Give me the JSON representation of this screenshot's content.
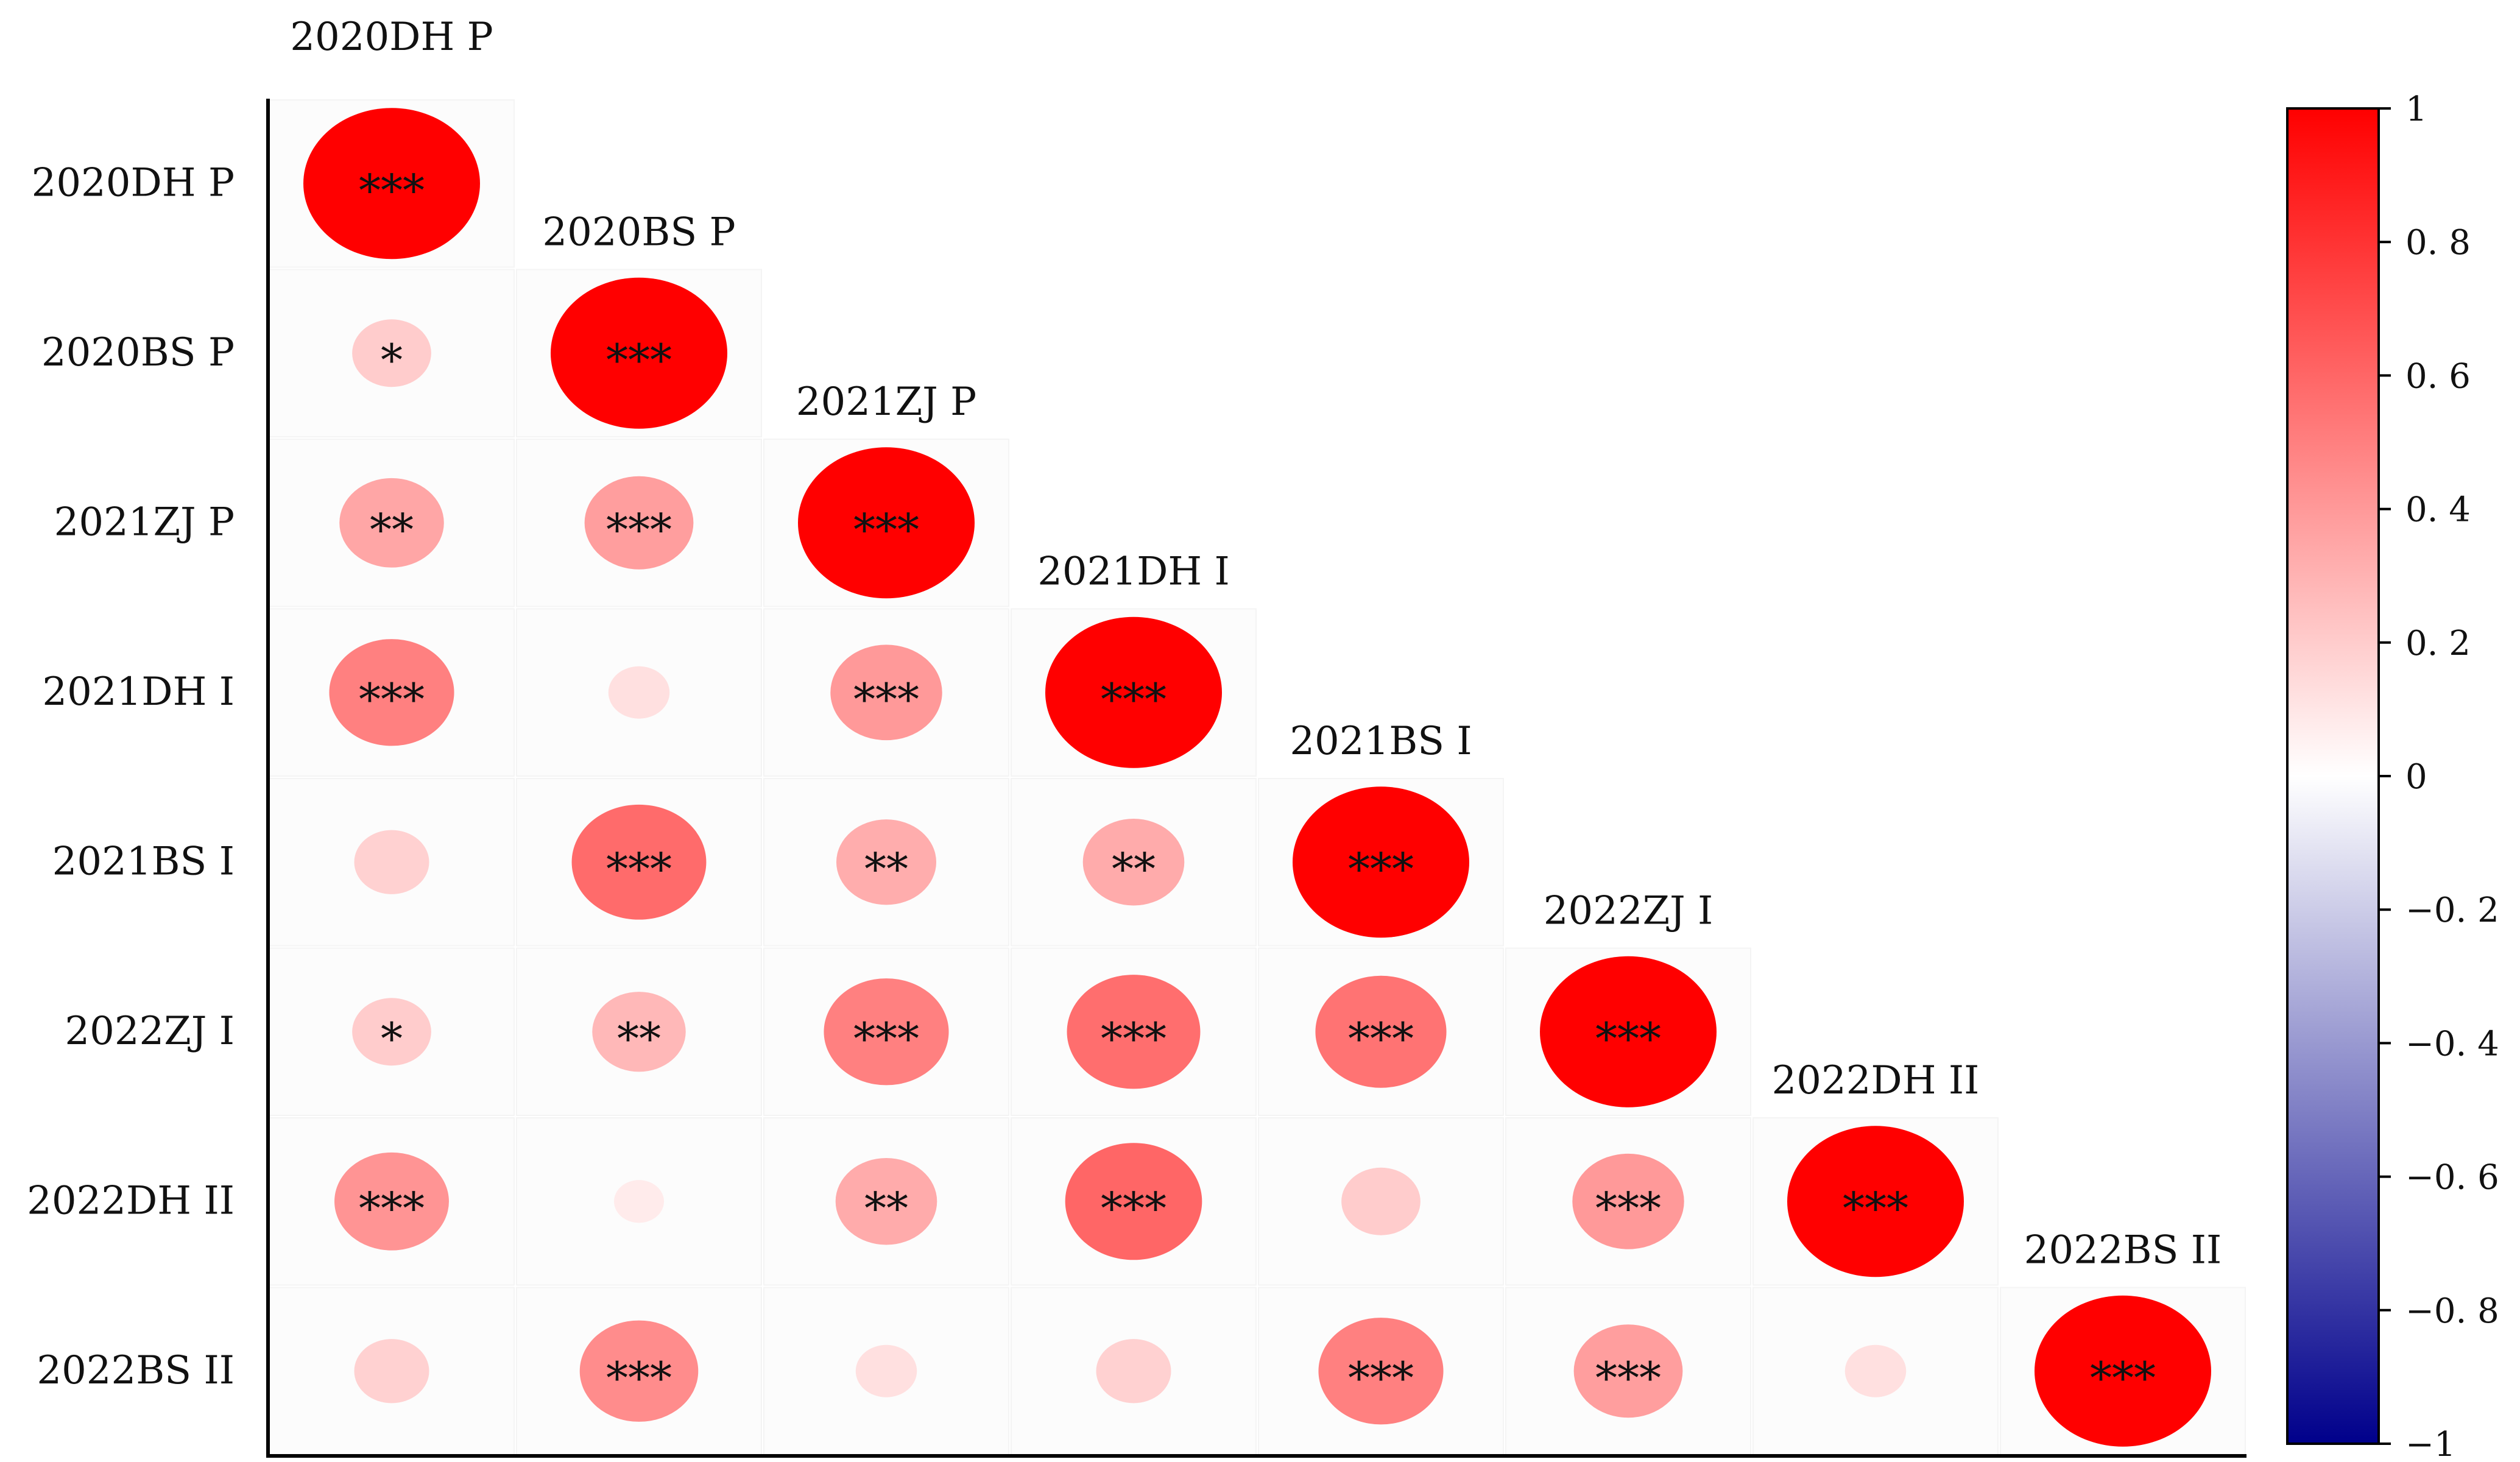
{
  "chart_data": {
    "type": "heatmap",
    "variant": "lower-triangle correlation matrix with sized circles",
    "labels": [
      "2020DH P",
      "2020BS P",
      "2021ZJ P",
      "2021DH I",
      "2021BS I",
      "2022ZJ I",
      "2022DH II",
      "2022BS II"
    ],
    "cells": [
      {
        "row": 0,
        "col": 0,
        "value": 1.0,
        "sig": "***"
      },
      {
        "row": 1,
        "col": 0,
        "value": 0.2,
        "sig": "*"
      },
      {
        "row": 1,
        "col": 1,
        "value": 1.0,
        "sig": "***"
      },
      {
        "row": 2,
        "col": 0,
        "value": 0.35,
        "sig": "**"
      },
      {
        "row": 2,
        "col": 1,
        "value": 0.38,
        "sig": "***"
      },
      {
        "row": 2,
        "col": 2,
        "value": 1.0,
        "sig": "***"
      },
      {
        "row": 3,
        "col": 0,
        "value": 0.5,
        "sig": "***"
      },
      {
        "row": 3,
        "col": 1,
        "value": 0.12,
        "sig": ""
      },
      {
        "row": 3,
        "col": 2,
        "value": 0.4,
        "sig": "***"
      },
      {
        "row": 3,
        "col": 3,
        "value": 1.0,
        "sig": "***"
      },
      {
        "row": 4,
        "col": 0,
        "value": 0.18,
        "sig": ""
      },
      {
        "row": 4,
        "col": 1,
        "value": 0.58,
        "sig": "***"
      },
      {
        "row": 4,
        "col": 2,
        "value": 0.32,
        "sig": "**"
      },
      {
        "row": 4,
        "col": 3,
        "value": 0.33,
        "sig": "**"
      },
      {
        "row": 4,
        "col": 4,
        "value": 1.0,
        "sig": "***"
      },
      {
        "row": 5,
        "col": 0,
        "value": 0.2,
        "sig": "*"
      },
      {
        "row": 5,
        "col": 1,
        "value": 0.28,
        "sig": "**"
      },
      {
        "row": 5,
        "col": 2,
        "value": 0.5,
        "sig": "***"
      },
      {
        "row": 5,
        "col": 3,
        "value": 0.57,
        "sig": "***"
      },
      {
        "row": 5,
        "col": 4,
        "value": 0.55,
        "sig": "***"
      },
      {
        "row": 5,
        "col": 5,
        "value": 1.0,
        "sig": "***"
      },
      {
        "row": 6,
        "col": 0,
        "value": 0.42,
        "sig": "***"
      },
      {
        "row": 6,
        "col": 1,
        "value": 0.08,
        "sig": ""
      },
      {
        "row": 6,
        "col": 2,
        "value": 0.33,
        "sig": "**"
      },
      {
        "row": 6,
        "col": 3,
        "value": 0.6,
        "sig": "***"
      },
      {
        "row": 6,
        "col": 4,
        "value": 0.2,
        "sig": ""
      },
      {
        "row": 6,
        "col": 5,
        "value": 0.4,
        "sig": "***"
      },
      {
        "row": 6,
        "col": 6,
        "value": 1.0,
        "sig": "***"
      },
      {
        "row": 7,
        "col": 0,
        "value": 0.18,
        "sig": ""
      },
      {
        "row": 7,
        "col": 1,
        "value": 0.45,
        "sig": "***"
      },
      {
        "row": 7,
        "col": 2,
        "value": 0.12,
        "sig": ""
      },
      {
        "row": 7,
        "col": 3,
        "value": 0.18,
        "sig": ""
      },
      {
        "row": 7,
        "col": 4,
        "value": 0.5,
        "sig": "***"
      },
      {
        "row": 7,
        "col": 5,
        "value": 0.38,
        "sig": "***"
      },
      {
        "row": 7,
        "col": 6,
        "value": 0.12,
        "sig": ""
      },
      {
        "row": 7,
        "col": 7,
        "value": 1.0,
        "sig": "***"
      }
    ],
    "colorbar": {
      "range": [
        -1,
        1
      ],
      "ticks": [
        "1",
        "0. 8",
        "0. 6",
        "0. 4",
        "0. 2",
        "0",
        "−0. 2",
        "−0. 4",
        "−0. 6",
        "−0. 8",
        "−1"
      ],
      "colors": {
        "positive": "#ff0000",
        "zero": "#ffffff",
        "negative": "#00008b"
      }
    },
    "grid": false,
    "legend": "right"
  }
}
